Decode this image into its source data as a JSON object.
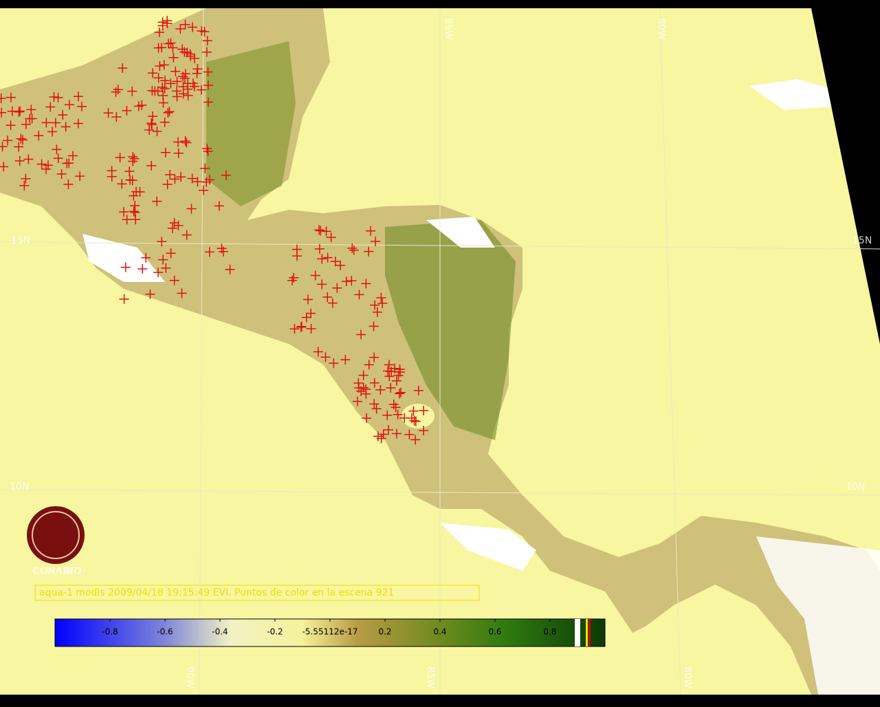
{
  "grid_labels": {
    "lat": [
      "15N",
      "10N"
    ],
    "lon": [
      "90W",
      "85W",
      "80W"
    ]
  },
  "logo": {
    "name": "CONABIO"
  },
  "caption": "aqua-1 modis 2009/04/18 19:15:49 EVI. Puntos de color en la escena 921",
  "colorbar": {
    "range": [
      -1,
      1
    ],
    "ticks": [
      -0.8,
      -0.6,
      -0.4,
      -0.2,
      -5.55112e-17,
      0.2,
      0.4,
      0.6,
      0.8
    ]
  }
}
